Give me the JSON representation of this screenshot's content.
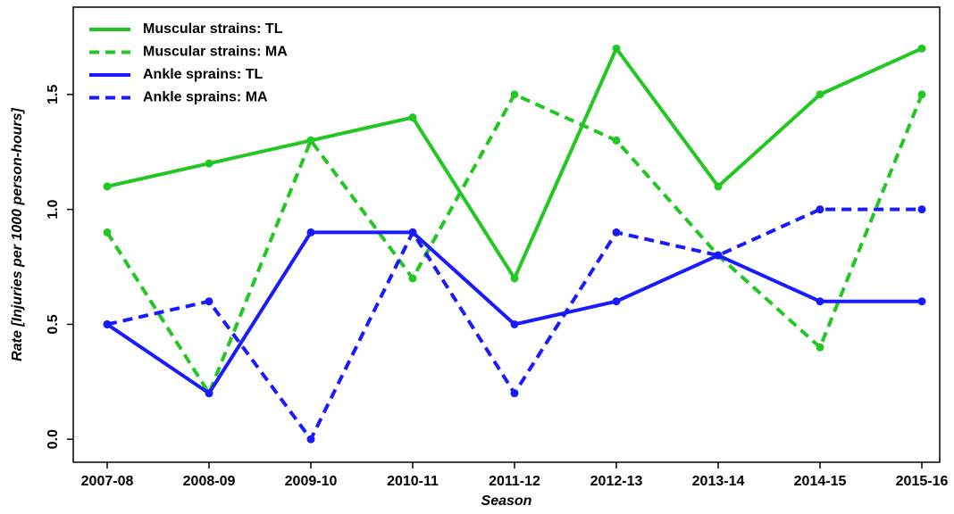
{
  "chart_data": {
    "type": "line",
    "x_label": "Season",
    "y_label": "Rate [Injuries per 1000 person-hours]",
    "categories": [
      "2007-08",
      "2008-09",
      "2009-10",
      "2010-11",
      "2011-12",
      "2012-13",
      "2013-14",
      "2014-15",
      "2015-16"
    ],
    "series": [
      {
        "name": "Muscular strains: TL",
        "color": "#22c722",
        "dashed": false,
        "values": [
          1.1,
          1.2,
          1.3,
          1.4,
          0.7,
          1.7,
          1.1,
          1.5,
          1.7
        ]
      },
      {
        "name": "Muscular strains: MA",
        "color": "#22c722",
        "dashed": true,
        "values": [
          0.9,
          0.2,
          1.3,
          0.7,
          1.5,
          1.3,
          0.8,
          0.4,
          1.5
        ]
      },
      {
        "name": "Ankle sprains: TL",
        "color": "#1a1aff",
        "dashed": false,
        "values": [
          0.5,
          0.2,
          0.9,
          0.9,
          0.5,
          0.6,
          0.8,
          0.6,
          0.6
        ]
      },
      {
        "name": "Ankle sprains: MA",
        "color": "#1a1aff",
        "dashed": true,
        "values": [
          0.5,
          0.6,
          0.0,
          0.9,
          0.2,
          0.9,
          0.8,
          1.0,
          1.0
        ]
      }
    ],
    "ylim": [
      -0.1,
      1.88
    ],
    "yticks": [
      {
        "value": 0,
        "label": "0.0"
      },
      0.5,
      {
        "value": 1,
        "label": "1.0"
      },
      1.5
    ],
    "legend": "top-left",
    "grid": false
  }
}
